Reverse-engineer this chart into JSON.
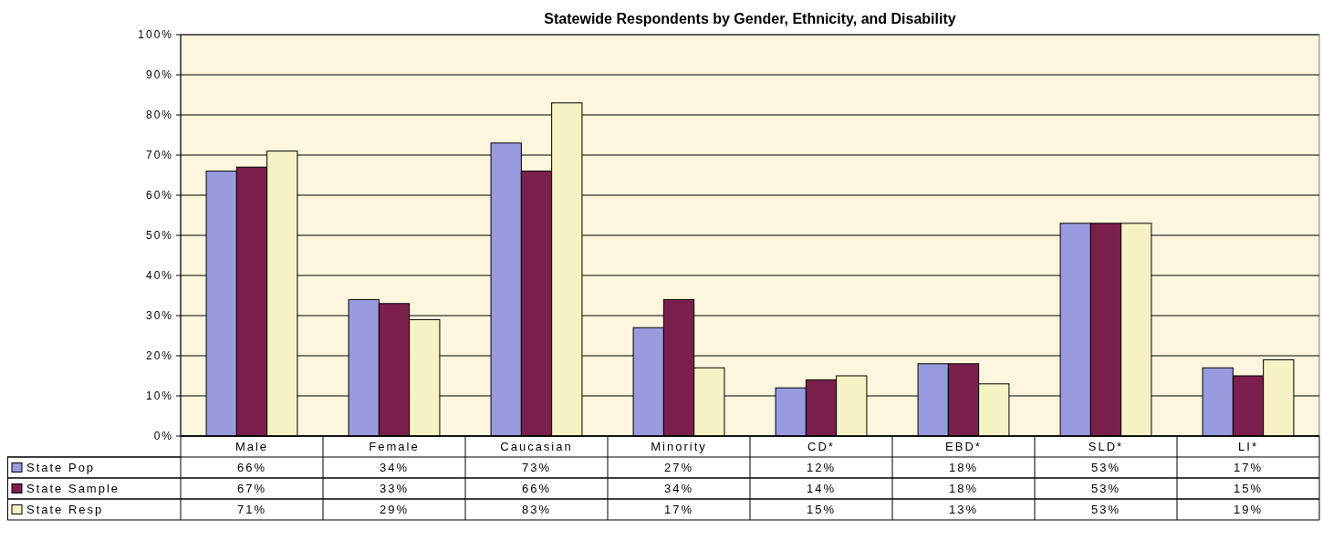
{
  "chart_data": {
    "type": "bar",
    "title": "Statewide Respondents by Gender, Ethnicity, and Disability",
    "categories": [
      "Male",
      "Female",
      "Caucasian",
      "Minority",
      "CD*",
      "EBD*",
      "SLD*",
      "LI*"
    ],
    "series": [
      {
        "name": "State Pop",
        "color": "#9a9ade",
        "values": [
          66,
          34,
          73,
          27,
          12,
          18,
          53,
          17
        ],
        "value_labels": [
          "66%",
          "34%",
          "73%",
          "27%",
          "12%",
          "18%",
          "53%",
          "17%"
        ]
      },
      {
        "name": "State Sample",
        "color": "#7b1f4c",
        "values": [
          67,
          33,
          66,
          34,
          14,
          18,
          53,
          15
        ],
        "value_labels": [
          "67%",
          "33%",
          "66%",
          "34%",
          "14%",
          "18%",
          "53%",
          "15%"
        ]
      },
      {
        "name": "State Resp",
        "color": "#f7f2c4",
        "values": [
          71,
          29,
          83,
          17,
          15,
          13,
          53,
          19
        ],
        "value_labels": [
          "71%",
          "29%",
          "83%",
          "17%",
          "15%",
          "13%",
          "53%",
          "19%"
        ]
      }
    ],
    "ylim": [
      0,
      100
    ],
    "yticks": [
      {
        "value": 0,
        "label": "0%"
      },
      {
        "value": 10,
        "label": "10%"
      },
      {
        "value": 20,
        "label": "20%"
      },
      {
        "value": 30,
        "label": "30%"
      },
      {
        "value": 40,
        "label": "40%"
      },
      {
        "value": 50,
        "label": "50%"
      },
      {
        "value": 60,
        "label": "60%"
      },
      {
        "value": 70,
        "label": "70%"
      },
      {
        "value": 80,
        "label": "80%"
      },
      {
        "value": 90,
        "label": "90%"
      },
      {
        "value": 100,
        "label": "100%"
      }
    ],
    "grid": "y",
    "legend": "bottom left"
  }
}
